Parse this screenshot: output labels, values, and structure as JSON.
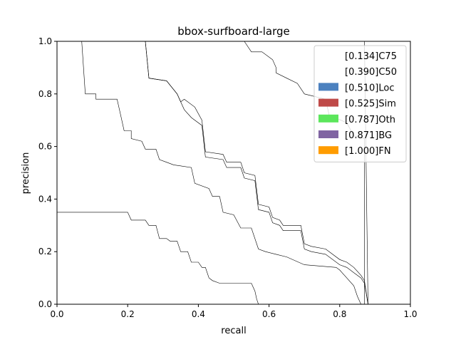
{
  "chart_data": {
    "type": "area",
    "title": "bbox-surfboard-large",
    "xlabel": "recall",
    "ylabel": "precision",
    "xlim": [
      0,
      1
    ],
    "ylim": [
      0,
      1
    ],
    "x_ticks": [
      "0.0",
      "0.2",
      "0.4",
      "0.6",
      "0.8",
      "1.0"
    ],
    "y_ticks": [
      "0.0",
      "0.2",
      "0.4",
      "0.6",
      "0.8",
      "1.0"
    ],
    "legend_position": "upper right",
    "series": [
      {
        "name": "[0.134]C75",
        "color": "#ffffff",
        "curve": [
          [
            0.0,
            0.35
          ],
          [
            0.2,
            0.35
          ],
          [
            0.21,
            0.32
          ],
          [
            0.25,
            0.32
          ],
          [
            0.26,
            0.3
          ],
          [
            0.28,
            0.3
          ],
          [
            0.29,
            0.25
          ],
          [
            0.31,
            0.25
          ],
          [
            0.32,
            0.24
          ],
          [
            0.34,
            0.24
          ],
          [
            0.35,
            0.2
          ],
          [
            0.37,
            0.2
          ],
          [
            0.38,
            0.16
          ],
          [
            0.4,
            0.16
          ],
          [
            0.41,
            0.14
          ],
          [
            0.42,
            0.14
          ],
          [
            0.43,
            0.1
          ],
          [
            0.44,
            0.09
          ],
          [
            0.46,
            0.08
          ],
          [
            0.55,
            0.08
          ],
          [
            0.56,
            0.05
          ],
          [
            0.565,
            0.02
          ],
          [
            0.57,
            0.0
          ]
        ]
      },
      {
        "name": "[0.390]C50",
        "color": "#ffffff",
        "curve": [
          [
            0.07,
            1.0
          ],
          [
            0.08,
            0.8
          ],
          [
            0.11,
            0.8
          ],
          [
            0.11,
            0.78
          ],
          [
            0.17,
            0.78
          ],
          [
            0.18,
            0.72
          ],
          [
            0.19,
            0.66
          ],
          [
            0.21,
            0.66
          ],
          [
            0.21,
            0.63
          ],
          [
            0.24,
            0.62
          ],
          [
            0.25,
            0.59
          ],
          [
            0.28,
            0.59
          ],
          [
            0.29,
            0.55
          ],
          [
            0.31,
            0.54
          ],
          [
            0.33,
            0.53
          ],
          [
            0.38,
            0.52
          ],
          [
            0.39,
            0.46
          ],
          [
            0.43,
            0.44
          ],
          [
            0.44,
            0.41
          ],
          [
            0.46,
            0.41
          ],
          [
            0.47,
            0.35
          ],
          [
            0.5,
            0.34
          ],
          [
            0.52,
            0.29
          ],
          [
            0.55,
            0.29
          ],
          [
            0.57,
            0.21
          ],
          [
            0.59,
            0.2
          ],
          [
            0.62,
            0.19
          ],
          [
            0.65,
            0.18
          ],
          [
            0.7,
            0.15
          ],
          [
            0.79,
            0.14
          ],
          [
            0.8,
            0.13
          ],
          [
            0.82,
            0.1
          ],
          [
            0.84,
            0.07
          ],
          [
            0.85,
            0.03
          ],
          [
            0.86,
            0.0
          ]
        ]
      },
      {
        "name": "[0.510]Loc",
        "color": "#4c81bf",
        "curve": [
          [
            0.25,
            1.0
          ],
          [
            0.26,
            0.86
          ],
          [
            0.31,
            0.85
          ],
          [
            0.34,
            0.8
          ],
          [
            0.35,
            0.77
          ],
          [
            0.36,
            0.74
          ],
          [
            0.38,
            0.71
          ],
          [
            0.41,
            0.68
          ],
          [
            0.42,
            0.56
          ],
          [
            0.47,
            0.55
          ],
          [
            0.48,
            0.52
          ],
          [
            0.52,
            0.52
          ],
          [
            0.53,
            0.48
          ],
          [
            0.56,
            0.47
          ],
          [
            0.57,
            0.36
          ],
          [
            0.6,
            0.35
          ],
          [
            0.61,
            0.31
          ],
          [
            0.63,
            0.3
          ],
          [
            0.64,
            0.28
          ],
          [
            0.69,
            0.28
          ],
          [
            0.7,
            0.21
          ],
          [
            0.72,
            0.2
          ],
          [
            0.76,
            0.19
          ],
          [
            0.8,
            0.15
          ],
          [
            0.82,
            0.14
          ],
          [
            0.84,
            0.12
          ],
          [
            0.86,
            0.1
          ],
          [
            0.87,
            0.08
          ],
          [
            0.88,
            0.0
          ]
        ]
      },
      {
        "name": "[0.525]Sim",
        "color": "#bf4a48",
        "curve": [
          [
            0.25,
            1.0
          ],
          [
            0.26,
            0.86
          ],
          [
            0.31,
            0.85
          ],
          [
            0.34,
            0.8
          ],
          [
            0.35,
            0.77
          ],
          [
            0.36,
            0.78
          ],
          [
            0.39,
            0.75
          ],
          [
            0.41,
            0.7
          ],
          [
            0.42,
            0.58
          ],
          [
            0.47,
            0.57
          ],
          [
            0.48,
            0.54
          ],
          [
            0.52,
            0.54
          ],
          [
            0.53,
            0.5
          ],
          [
            0.56,
            0.49
          ],
          [
            0.57,
            0.38
          ],
          [
            0.6,
            0.37
          ],
          [
            0.61,
            0.33
          ],
          [
            0.63,
            0.32
          ],
          [
            0.64,
            0.3
          ],
          [
            0.69,
            0.3
          ],
          [
            0.7,
            0.23
          ],
          [
            0.72,
            0.22
          ],
          [
            0.76,
            0.21
          ],
          [
            0.8,
            0.17
          ],
          [
            0.82,
            0.16
          ],
          [
            0.84,
            0.14
          ],
          [
            0.86,
            0.11
          ],
          [
            0.87,
            0.09
          ],
          [
            0.88,
            0.0
          ]
        ]
      },
      {
        "name": "[0.787]Oth",
        "color": "#5ce65c",
        "curve": [
          [
            0.53,
            1.0
          ],
          [
            0.55,
            0.96
          ],
          [
            0.58,
            0.96
          ],
          [
            0.61,
            0.93
          ],
          [
            0.62,
            0.9
          ],
          [
            0.62,
            0.88
          ],
          [
            0.65,
            0.86
          ],
          [
            0.68,
            0.84
          ],
          [
            0.7,
            0.8
          ],
          [
            0.76,
            0.78
          ],
          [
            0.77,
            0.72
          ],
          [
            0.82,
            0.69
          ],
          [
            0.84,
            0.64
          ],
          [
            0.87,
            0.63
          ],
          [
            0.87,
            0.0
          ]
        ]
      },
      {
        "name": "[0.871]BG",
        "color": "#8064a2",
        "curve": [
          [
            0.87,
            1.0
          ],
          [
            0.88,
            0.0
          ]
        ]
      },
      {
        "name": "[1.000]FN",
        "color": "#ff9c00",
        "curve": [
          [
            1.0,
            1.0
          ],
          [
            1.0,
            0.0
          ]
        ]
      }
    ]
  }
}
